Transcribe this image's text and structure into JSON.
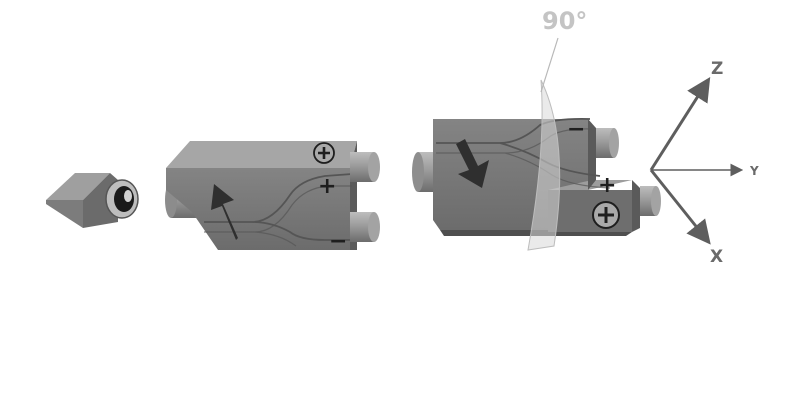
{
  "diagram": {
    "rotation_label": "90°",
    "axes": {
      "x": "X",
      "y": "Y",
      "z": "Z"
    },
    "splitter_left": {
      "signs": {
        "plus_circle": "⊕",
        "plus": "+",
        "minus": "−"
      }
    },
    "splitter_right": {
      "signs": {
        "plus_circle": "⊕",
        "plus": "+",
        "minus": "−"
      }
    },
    "colors": {
      "body_front": "#7b7b7b",
      "body_top": "#a9a9a9",
      "body_side": "#5d5d5d",
      "connector": "#9a9a9a",
      "arrow": "#2f2f2f",
      "rotation_plane": "#d8d8d8",
      "axis": "#5e5e5e"
    }
  }
}
